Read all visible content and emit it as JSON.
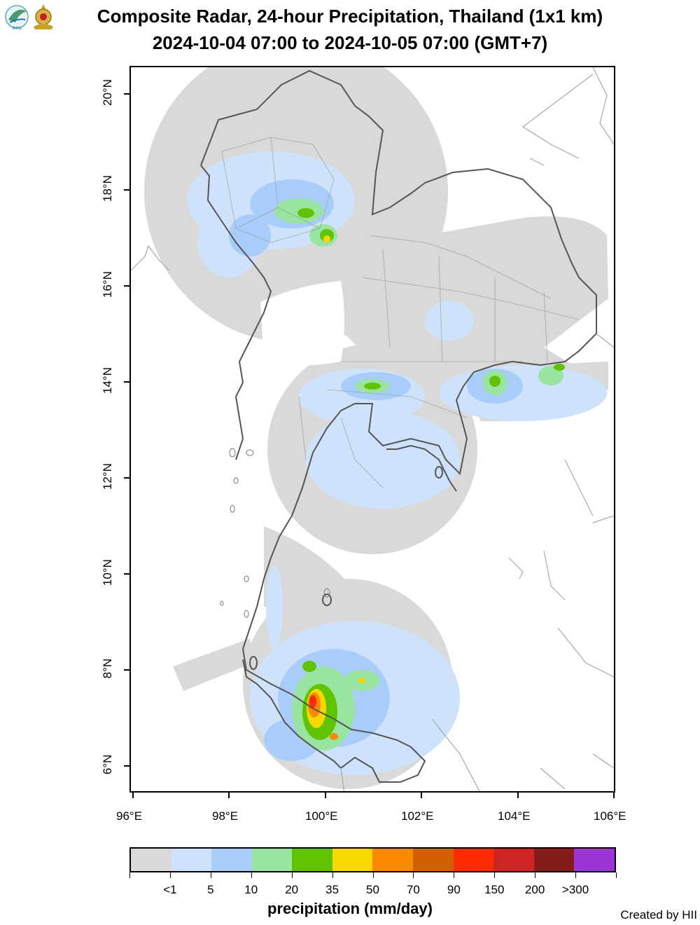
{
  "header": {
    "title_line1": "Composite Radar, 24-hour Precipitation, Thailand (1x1 km)",
    "title_line2": "2024-10-04 07:00 to 2024-10-05 07:00 (GMT+7)",
    "logo_text": "สสน"
  },
  "map": {
    "lon_labels": [
      "96°E",
      "98°E",
      "100°E",
      "102°E",
      "104°E",
      "106°E"
    ],
    "lat_labels": [
      "20°N",
      "18°N",
      "16°N",
      "14°N",
      "12°N",
      "10°N",
      "8°N",
      "6°N"
    ]
  },
  "legend": {
    "title": "precipitation (mm/day)",
    "labels": [
      "<1",
      "5",
      "10",
      "20",
      "35",
      "50",
      "70",
      "90",
      "150",
      "200",
      ">300"
    ],
    "colors": [
      "#d9d9d9",
      "#cfe2fb",
      "#a9cdfb",
      "#98e4a0",
      "#5fc300",
      "#f8d800",
      "#fb8a00",
      "#d06300",
      "#fb2a00",
      "#cf2424",
      "#861b1b",
      "#9b36d4"
    ]
  },
  "footer": {
    "credit": "Created by HII"
  }
}
